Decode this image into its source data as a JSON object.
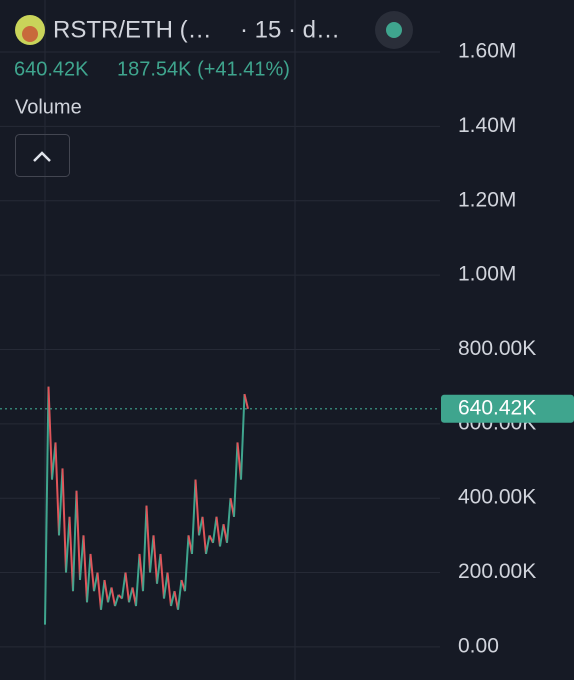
{
  "chart_data": {
    "type": "line",
    "title": "RSTR/ETH (…",
    "interval": "· 15 · d…",
    "last_value_label": "640.42K",
    "change": "187.54K (+41.41%)",
    "indicator": "Volume",
    "up_color": "#3fa58e",
    "down_color": "#e0555a",
    "grid": true,
    "ylim": [
      -89000,
      1740000
    ],
    "yticks": [
      {
        "value": 0,
        "label": "0.00"
      },
      {
        "value": 200000,
        "label": "200.00K"
      },
      {
        "value": 400000,
        "label": "400.00K"
      },
      {
        "value": 600000,
        "label": "600.00K"
      },
      {
        "value": 800000,
        "label": "800.00K"
      },
      {
        "value": 1000000,
        "label": "1.00M"
      },
      {
        "value": 1200000,
        "label": "1.20M"
      },
      {
        "value": 1400000,
        "label": "1.40M"
      },
      {
        "value": 1600000,
        "label": "1.60M"
      }
    ],
    "series": [
      {
        "values": [
          60000,
          700000,
          450000,
          550000,
          300000,
          480000,
          200000,
          350000,
          150000,
          420000,
          180000,
          300000,
          120000,
          250000,
          150000,
          200000,
          100000,
          180000,
          120000,
          160000,
          110000,
          140000,
          130000,
          200000,
          120000,
          160000,
          110000,
          250000,
          150000,
          380000,
          200000,
          300000,
          170000,
          250000,
          130000,
          200000,
          110000,
          150000,
          100000,
          180000,
          150000,
          300000,
          250000,
          450000,
          300000,
          350000,
          250000,
          300000,
          280000,
          350000,
          270000,
          330000,
          280000,
          400000,
          350000,
          550000,
          450000,
          680000,
          640420
        ]
      }
    ]
  }
}
